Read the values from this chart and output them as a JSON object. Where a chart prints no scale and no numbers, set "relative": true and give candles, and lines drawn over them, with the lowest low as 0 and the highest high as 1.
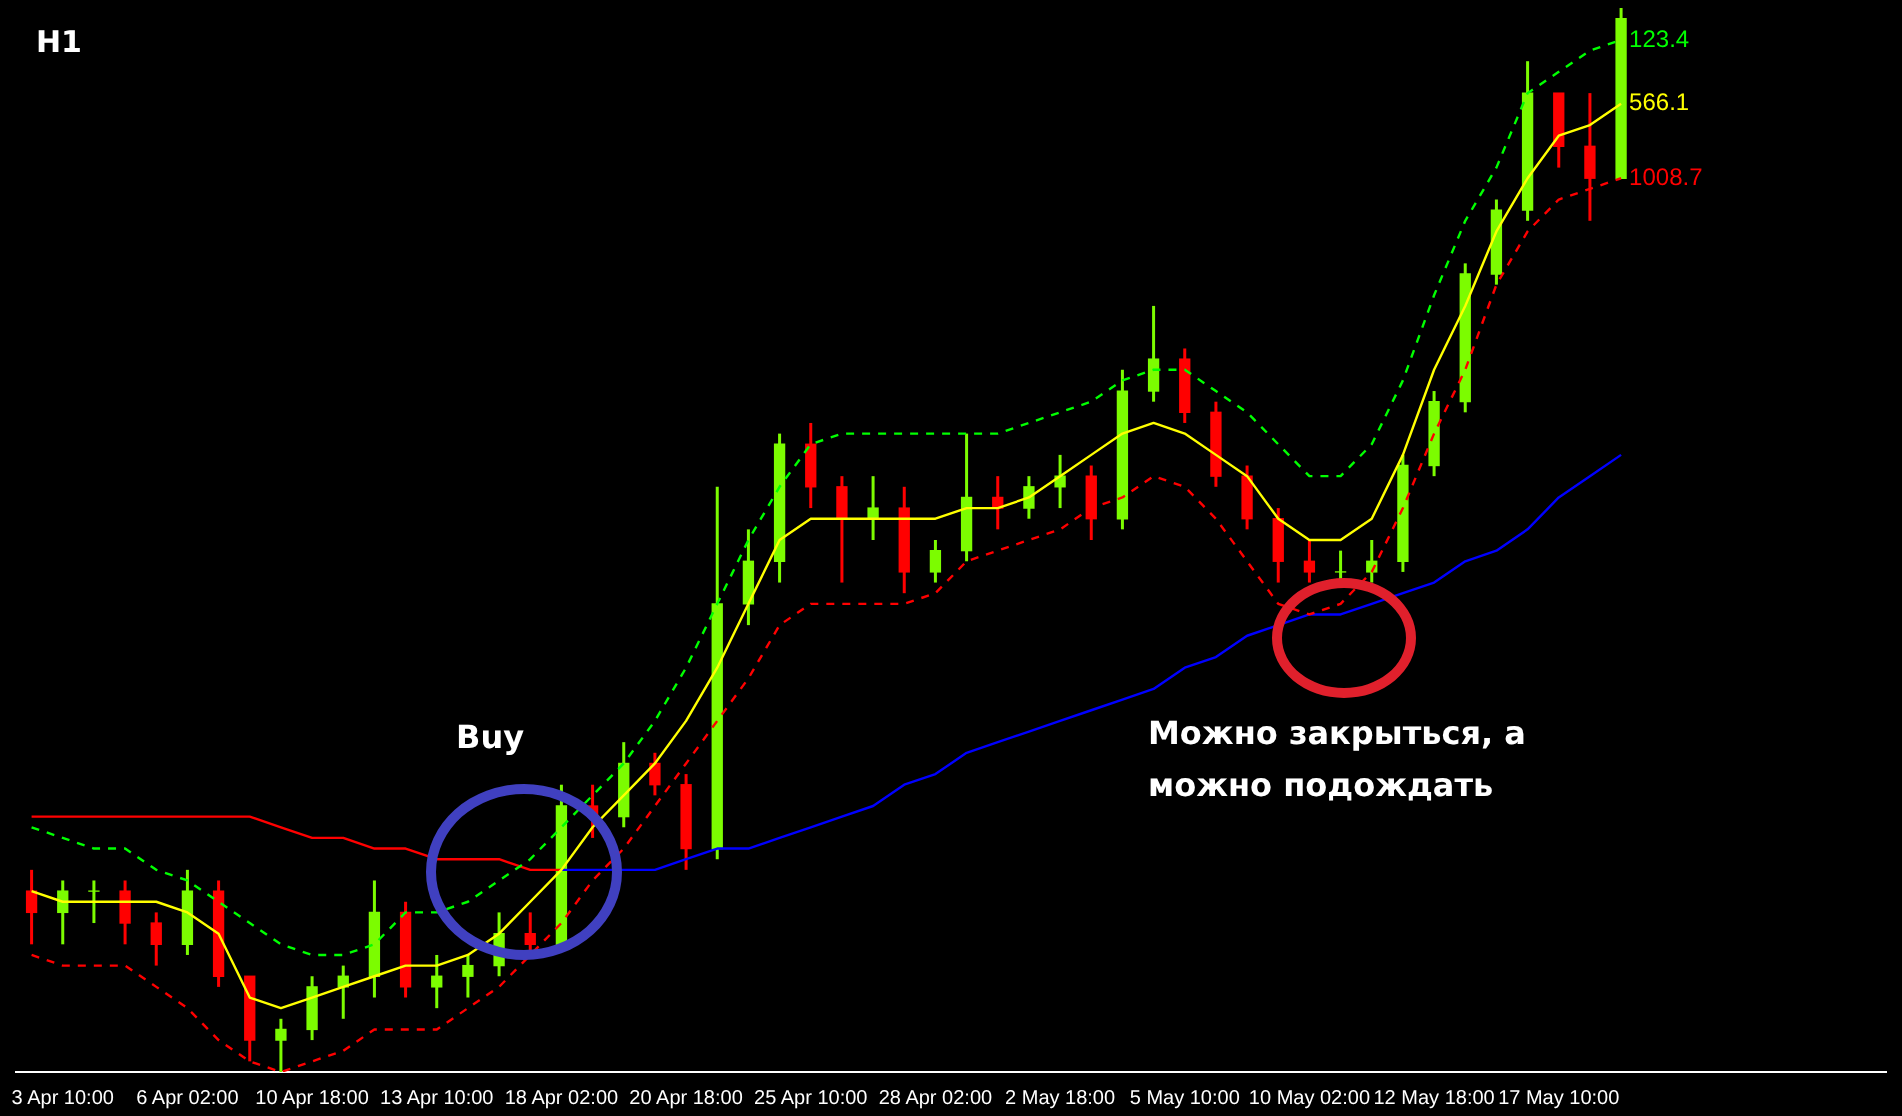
{
  "chart_data": {
    "type": "candlestick",
    "relative": true,
    "legend": false,
    "grid": false,
    "marker": "none",
    "categories": [
      null,
      "3 Apr 10:00",
      null,
      null,
      null,
      "6 Apr 02:00",
      null,
      null,
      null,
      "10 Apr 18:00",
      null,
      null,
      null,
      "13 Apr 10:00",
      null,
      null,
      null,
      "18 Apr 02:00",
      null,
      null,
      null,
      "20 Apr 18:00",
      null,
      null,
      null,
      "25 Apr 10:00",
      null,
      null,
      null,
      "28 Apr 02:00",
      null,
      null,
      null,
      "2 May 18:00",
      null,
      null,
      null,
      "5 May 10:00",
      null,
      null,
      null,
      "10 May 02:00",
      null,
      null,
      null,
      "12 May 18:00",
      null,
      null,
      null,
      "17 May 10:00",
      null,
      null,
      null,
      null,
      null,
      null,
      null,
      null,
      null,
      null
    ],
    "ohlc": [
      [
        0.17,
        0.19,
        0.12,
        0.15
      ],
      [
        0.15,
        0.18,
        0.12,
        0.17
      ],
      [
        0.17,
        0.18,
        0.14,
        0.17
      ],
      [
        0.17,
        0.18,
        0.12,
        0.14
      ],
      [
        0.14,
        0.15,
        0.1,
        0.12
      ],
      [
        0.12,
        0.19,
        0.11,
        0.17
      ],
      [
        0.17,
        0.18,
        0.08,
        0.09
      ],
      [
        0.09,
        0.09,
        0.01,
        0.03
      ],
      [
        0.03,
        0.05,
        0.0,
        0.04
      ],
      [
        0.04,
        0.09,
        0.03,
        0.08
      ],
      [
        0.08,
        0.1,
        0.05,
        0.09
      ],
      [
        0.09,
        0.18,
        0.07,
        0.15
      ],
      [
        0.15,
        0.16,
        0.07,
        0.08
      ],
      [
        0.08,
        0.11,
        0.06,
        0.09
      ],
      [
        0.09,
        0.11,
        0.07,
        0.1
      ],
      [
        0.1,
        0.15,
        0.09,
        0.13
      ],
      [
        0.13,
        0.15,
        0.11,
        0.12
      ],
      [
        0.12,
        0.27,
        0.12,
        0.25
      ],
      [
        0.25,
        0.27,
        0.22,
        0.24
      ],
      [
        0.24,
        0.31,
        0.23,
        0.29
      ],
      [
        0.29,
        0.3,
        0.26,
        0.27
      ],
      [
        0.27,
        0.28,
        0.19,
        0.21
      ],
      [
        0.21,
        0.55,
        0.2,
        0.44
      ],
      [
        0.44,
        0.51,
        0.42,
        0.48
      ],
      [
        0.48,
        0.6,
        0.46,
        0.59
      ],
      [
        0.59,
        0.61,
        0.53,
        0.55
      ],
      [
        0.55,
        0.56,
        0.46,
        0.52
      ],
      [
        0.52,
        0.56,
        0.5,
        0.53
      ],
      [
        0.53,
        0.55,
        0.45,
        0.47
      ],
      [
        0.47,
        0.5,
        0.46,
        0.49
      ],
      [
        0.49,
        0.6,
        0.48,
        0.54
      ],
      [
        0.54,
        0.56,
        0.51,
        0.53
      ],
      [
        0.53,
        0.56,
        0.52,
        0.55
      ],
      [
        0.55,
        0.58,
        0.53,
        0.56
      ],
      [
        0.56,
        0.57,
        0.5,
        0.52
      ],
      [
        0.52,
        0.66,
        0.51,
        0.64
      ],
      [
        0.64,
        0.72,
        0.63,
        0.67
      ],
      [
        0.67,
        0.68,
        0.61,
        0.62
      ],
      [
        0.62,
        0.63,
        0.55,
        0.56
      ],
      [
        0.56,
        0.57,
        0.51,
        0.52
      ],
      [
        0.52,
        0.53,
        0.46,
        0.48
      ],
      [
        0.48,
        0.5,
        0.46,
        0.47
      ],
      [
        0.47,
        0.49,
        0.46,
        0.47
      ],
      [
        0.47,
        0.5,
        0.46,
        0.48
      ],
      [
        0.48,
        0.58,
        0.47,
        0.57
      ],
      [
        0.57,
        0.64,
        0.56,
        0.63
      ],
      [
        0.63,
        0.76,
        0.62,
        0.75
      ],
      [
        0.75,
        0.82,
        0.74,
        0.81
      ],
      [
        0.81,
        0.95,
        0.8,
        0.92
      ],
      [
        0.92,
        0.92,
        0.85,
        0.87
      ],
      [
        0.87,
        0.92,
        0.8,
        0.84
      ],
      [
        0.84,
        1.0,
        0.84,
        0.99
      ],
      null,
      null,
      null,
      null,
      null,
      null,
      null,
      null
    ],
    "colors": [
      "#ff0000",
      "#7cfc00",
      "#7cfc00",
      "#ff0000",
      "#ff0000",
      "#7cfc00",
      "#ff0000",
      "#ff0000",
      "#7cfc00",
      "#7cfc00",
      "#7cfc00",
      "#7cfc00",
      "#ff0000",
      "#7cfc00",
      "#7cfc00",
      "#7cfc00",
      "#ff0000",
      "#7cfc00",
      "#ff0000",
      "#7cfc00",
      "#ff0000",
      "#ff0000",
      "#7cfc00",
      "#7cfc00",
      "#7cfc00",
      "#ff0000",
      "#ff0000",
      "#7cfc00",
      "#ff0000",
      "#7cfc00",
      "#7cfc00",
      "#ff0000",
      "#7cfc00",
      "#7cfc00",
      "#ff0000",
      "#7cfc00",
      "#7cfc00",
      "#ff0000",
      "#ff0000",
      "#ff0000",
      "#ff0000",
      "#ff0000",
      "#7cfc00",
      "#7cfc00",
      "#7cfc00",
      "#7cfc00",
      "#7cfc00",
      "#7cfc00",
      "#7cfc00",
      "#ff0000",
      "#ff0000",
      "#7cfc00",
      null,
      null,
      null,
      null,
      null,
      null,
      null,
      null
    ],
    "series": [
      {
        "type": "line",
        "name": "123.4",
        "color": "#00ff00",
        "line_style": "dashed",
        "values": [
          0.23,
          0.22,
          0.21,
          0.21,
          0.19,
          0.18,
          0.16,
          0.14,
          0.12,
          0.11,
          0.11,
          0.12,
          0.15,
          0.15,
          0.16,
          0.18,
          0.2,
          0.23,
          0.26,
          0.29,
          0.33,
          0.38,
          0.44,
          0.5,
          0.55,
          0.59,
          0.6,
          0.6,
          0.6,
          0.6,
          0.6,
          0.6,
          0.61,
          0.62,
          0.63,
          0.65,
          0.66,
          0.66,
          0.64,
          0.62,
          0.59,
          0.56,
          0.56,
          0.59,
          0.65,
          0.73,
          0.8,
          0.85,
          0.92,
          0.94,
          0.96,
          0.97,
          null,
          null,
          null,
          null,
          null,
          null,
          null,
          null
        ]
      },
      {
        "type": "line",
        "name": "566.1",
        "color": "#ffff00",
        "line_style": "solid",
        "values": [
          0.17,
          0.16,
          0.16,
          0.16,
          0.16,
          0.15,
          0.13,
          0.07,
          0.06,
          0.07,
          0.08,
          0.09,
          0.1,
          0.1,
          0.11,
          0.13,
          0.16,
          0.19,
          0.23,
          0.26,
          0.29,
          0.33,
          0.38,
          0.44,
          0.5,
          0.52,
          0.52,
          0.52,
          0.52,
          0.52,
          0.53,
          0.53,
          0.54,
          0.56,
          0.58,
          0.6,
          0.61,
          0.6,
          0.58,
          0.56,
          0.52,
          0.5,
          0.5,
          0.52,
          0.58,
          0.66,
          0.72,
          0.79,
          0.84,
          0.88,
          0.89,
          0.91,
          null,
          null,
          null,
          null,
          null,
          null,
          null,
          null
        ]
      },
      {
        "type": "line",
        "name": "1008.7",
        "color": "#ff0000",
        "line_style": "dashed",
        "values": [
          0.11,
          0.1,
          0.1,
          0.1,
          0.08,
          0.06,
          0.03,
          0.01,
          0.0,
          0.01,
          0.02,
          0.04,
          0.04,
          0.04,
          0.06,
          0.08,
          0.11,
          0.14,
          0.18,
          0.21,
          0.25,
          0.29,
          0.33,
          0.37,
          0.42,
          0.44,
          0.44,
          0.44,
          0.44,
          0.45,
          0.48,
          0.49,
          0.5,
          0.51,
          0.53,
          0.54,
          0.56,
          0.55,
          0.52,
          0.48,
          0.44,
          0.43,
          0.44,
          0.47,
          0.53,
          0.6,
          0.66,
          0.74,
          0.79,
          0.82,
          0.83,
          0.84,
          null,
          null,
          null,
          null,
          null,
          null,
          null,
          null
        ]
      },
      {
        "type": "line",
        "color": "#ff0000",
        "line_style": "solid",
        "values": [
          0.24,
          0.24,
          0.24,
          0.24,
          0.24,
          0.24,
          0.24,
          0.24,
          0.23,
          0.22,
          0.22,
          0.21,
          0.21,
          0.2,
          0.2,
          0.2,
          0.19,
          0.19,
          null,
          null,
          null,
          null,
          null,
          null,
          null,
          null,
          null,
          null,
          null,
          null,
          null,
          null,
          null,
          null,
          null,
          null,
          null,
          null,
          null,
          null,
          null,
          null,
          null,
          null,
          null,
          null,
          null,
          null,
          null,
          null,
          null,
          null,
          null,
          null,
          null,
          null,
          null,
          null,
          null,
          null
        ]
      },
      {
        "type": "line",
        "color": "#0000ff",
        "line_style": "solid",
        "values": [
          null,
          null,
          null,
          null,
          null,
          null,
          null,
          null,
          null,
          null,
          null,
          null,
          null,
          null,
          null,
          null,
          null,
          0.19,
          0.19,
          0.19,
          0.19,
          0.2,
          0.21,
          0.21,
          0.22,
          0.23,
          0.24,
          0.25,
          0.27,
          0.28,
          0.3,
          0.31,
          0.32,
          0.33,
          0.34,
          0.35,
          0.36,
          0.38,
          0.39,
          0.41,
          0.42,
          0.43,
          0.43,
          0.44,
          0.45,
          0.46,
          0.48,
          0.49,
          0.51,
          0.54,
          0.56,
          0.58,
          null,
          null,
          null,
          null,
          null,
          null,
          null,
          null
        ]
      }
    ],
    "annotations": [
      "H1",
      "Buy",
      "Можно закрыться, а можно подождать"
    ]
  }
}
